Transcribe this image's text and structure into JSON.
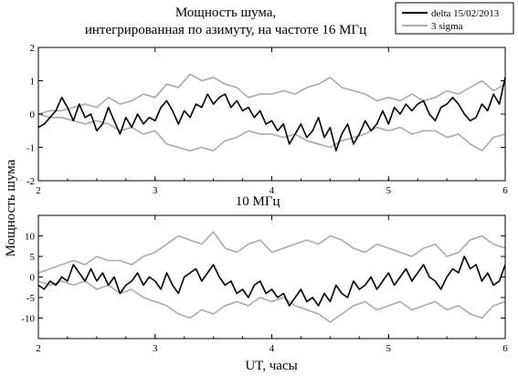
{
  "figure": {
    "title_line1": "Мощность шума,",
    "title_line2": "интегрированная по азимуту, на частоте 16 МГц",
    "ylabel": "Мощность шума",
    "xlabel": "UT, часы",
    "legend": [
      {
        "label": "delta 15/02/2013",
        "color": "#000000"
      },
      {
        "label": "3 sigma",
        "color": "#aaaaaa"
      }
    ]
  },
  "chart_data": [
    {
      "type": "line",
      "title": "",
      "xlabel": "",
      "ylabel": "",
      "xlim": [
        2,
        6
      ],
      "ylim": [
        -2,
        2
      ],
      "xticks": [
        2,
        3,
        4,
        5,
        6
      ],
      "yticks": [
        -2,
        -1,
        0,
        1,
        2
      ],
      "grid": false,
      "series": [
        {
          "name": "delta 15/02/2013",
          "color": "#000000",
          "x": [
            2.0,
            2.05,
            2.1,
            2.15,
            2.2,
            2.25,
            2.3,
            2.35,
            2.4,
            2.45,
            2.5,
            2.55,
            2.6,
            2.65,
            2.7,
            2.75,
            2.8,
            2.85,
            2.9,
            2.95,
            3.0,
            3.05,
            3.1,
            3.15,
            3.2,
            3.25,
            3.3,
            3.35,
            3.4,
            3.45,
            3.5,
            3.55,
            3.6,
            3.65,
            3.7,
            3.75,
            3.8,
            3.85,
            3.9,
            3.95,
            4.0,
            4.05,
            4.1,
            4.15,
            4.2,
            4.25,
            4.3,
            4.35,
            4.4,
            4.45,
            4.5,
            4.55,
            4.6,
            4.65,
            4.7,
            4.75,
            4.8,
            4.85,
            4.9,
            4.95,
            5.0,
            5.05,
            5.1,
            5.15,
            5.2,
            5.25,
            5.3,
            5.35,
            5.4,
            5.45,
            5.5,
            5.55,
            5.6,
            5.65,
            5.7,
            5.75,
            5.8,
            5.85,
            5.9,
            5.95,
            6.0
          ],
          "y": [
            -0.4,
            -0.3,
            -0.1,
            0.1,
            0.5,
            0.2,
            -0.2,
            0.3,
            -0.1,
            0.0,
            -0.5,
            -0.3,
            0.2,
            -0.2,
            -0.6,
            -0.1,
            -0.4,
            0.0,
            -0.3,
            -0.1,
            -0.2,
            0.2,
            0.4,
            0.1,
            -0.3,
            0.1,
            -0.1,
            0.3,
            0.2,
            0.6,
            0.3,
            0.5,
            0.6,
            0.2,
            0.4,
            0.1,
            0.2,
            -0.1,
            0.1,
            -0.3,
            -0.2,
            -0.5,
            -0.3,
            -0.9,
            -0.6,
            -0.3,
            -0.7,
            -0.5,
            -0.1,
            -0.7,
            -0.4,
            -1.1,
            -0.6,
            -0.3,
            -0.9,
            -0.6,
            -0.2,
            -0.5,
            -0.3,
            0.1,
            -0.3,
            0.2,
            0.0,
            0.3,
            0.1,
            0.3,
            0.4,
            0.0,
            -0.2,
            0.2,
            0.3,
            0.5,
            0.3,
            0.0,
            -0.2,
            -0.1,
            0.3,
            0.1,
            0.6,
            0.3,
            1.1
          ]
        },
        {
          "name": "3 sigma",
          "color": "#aaaaaa",
          "x": [
            2.0,
            2.1,
            2.2,
            2.3,
            2.4,
            2.5,
            2.6,
            2.7,
            2.8,
            2.9,
            3.0,
            3.1,
            3.2,
            3.3,
            3.4,
            3.5,
            3.6,
            3.7,
            3.8,
            3.9,
            4.0,
            4.1,
            4.2,
            4.3,
            4.4,
            4.5,
            4.6,
            4.7,
            4.8,
            4.9,
            5.0,
            5.1,
            5.2,
            5.3,
            5.4,
            5.5,
            5.6,
            5.7,
            5.8,
            5.9,
            6.0
          ],
          "y": [
            0.0,
            0.1,
            0.1,
            0.2,
            0.3,
            0.2,
            0.5,
            0.3,
            0.4,
            0.6,
            0.5,
            0.9,
            0.8,
            1.2,
            1.0,
            1.1,
            0.9,
            0.8,
            0.5,
            0.6,
            0.6,
            0.7,
            0.6,
            0.8,
            0.9,
            1.1,
            0.8,
            0.7,
            0.6,
            0.4,
            0.5,
            0.4,
            0.6,
            0.4,
            0.5,
            0.7,
            0.6,
            0.8,
            1.0,
            0.7,
            0.9
          ]
        },
        {
          "name": "",
          "color": "#aaaaaa",
          "x": [
            2.0,
            2.1,
            2.2,
            2.3,
            2.4,
            2.5,
            2.6,
            2.7,
            2.8,
            2.9,
            3.0,
            3.1,
            3.2,
            3.3,
            3.4,
            3.5,
            3.6,
            3.7,
            3.8,
            3.9,
            4.0,
            4.1,
            4.2,
            4.3,
            4.4,
            4.5,
            4.6,
            4.7,
            4.8,
            4.9,
            5.0,
            5.1,
            5.2,
            5.3,
            5.4,
            5.5,
            5.6,
            5.7,
            5.8,
            5.9,
            6.0
          ],
          "y": [
            0.0,
            -0.1,
            -0.1,
            -0.2,
            -0.3,
            -0.2,
            -0.3,
            -0.5,
            -0.4,
            -0.6,
            -0.5,
            -0.9,
            -1.0,
            -1.1,
            -1.0,
            -1.1,
            -0.8,
            -0.7,
            -0.5,
            -0.6,
            -0.6,
            -0.7,
            -0.6,
            -0.8,
            -0.9,
            -1.0,
            -0.8,
            -0.7,
            -0.6,
            -0.4,
            -0.5,
            -0.4,
            -0.6,
            -0.5,
            -0.5,
            -0.7,
            -0.6,
            -0.9,
            -1.1,
            -0.7,
            -0.6
          ]
        }
      ]
    },
    {
      "type": "line",
      "title": "10 МГц",
      "xlabel": "",
      "ylabel": "",
      "xlim": [
        2,
        6
      ],
      "ylim": [
        -15,
        15
      ],
      "xticks": [
        2,
        3,
        4,
        5,
        6
      ],
      "yticks": [
        -10,
        -5,
        0,
        5,
        10
      ],
      "grid": false,
      "series": [
        {
          "name": "",
          "color": "#000000",
          "x": [
            2.0,
            2.05,
            2.1,
            2.15,
            2.2,
            2.25,
            2.3,
            2.35,
            2.4,
            2.45,
            2.5,
            2.55,
            2.6,
            2.65,
            2.7,
            2.75,
            2.8,
            2.85,
            2.9,
            2.95,
            3.0,
            3.05,
            3.1,
            3.15,
            3.2,
            3.25,
            3.3,
            3.35,
            3.4,
            3.45,
            3.5,
            3.55,
            3.6,
            3.65,
            3.7,
            3.75,
            3.8,
            3.85,
            3.9,
            3.95,
            4.0,
            4.05,
            4.1,
            4.15,
            4.2,
            4.25,
            4.3,
            4.35,
            4.4,
            4.45,
            4.5,
            4.55,
            4.6,
            4.65,
            4.7,
            4.75,
            4.8,
            4.85,
            4.9,
            4.95,
            5.0,
            5.05,
            5.1,
            5.15,
            5.2,
            5.25,
            5.3,
            5.35,
            5.4,
            5.45,
            5.5,
            5.55,
            5.6,
            5.65,
            5.7,
            5.75,
            5.8,
            5.85,
            5.9,
            5.95,
            6.0
          ],
          "y": [
            -2,
            -3,
            -1,
            -2,
            0,
            -1,
            3,
            1,
            -1,
            2,
            -1,
            1,
            -2,
            0,
            -4,
            -2,
            -1,
            1,
            -2,
            0,
            -1,
            -3,
            1,
            -2,
            -4,
            0,
            1,
            2,
            -1,
            1,
            3,
            0,
            -2,
            -1,
            -4,
            -3,
            -5,
            -2,
            -1,
            -4,
            -3,
            -5,
            -4,
            -7,
            -5,
            -3,
            -6,
            -5,
            -7,
            -4,
            -6,
            -2,
            -4,
            -5,
            -1,
            -3,
            -2,
            0,
            -3,
            -1,
            1,
            -2,
            0,
            2,
            -1,
            1,
            3,
            0,
            -1,
            -3,
            0,
            2,
            1,
            5,
            2,
            3,
            -1,
            1,
            -2,
            -1,
            3
          ]
        },
        {
          "name": "",
          "color": "#aaaaaa",
          "x": [
            2.0,
            2.1,
            2.2,
            2.3,
            2.4,
            2.5,
            2.6,
            2.7,
            2.8,
            2.9,
            3.0,
            3.1,
            3.2,
            3.3,
            3.4,
            3.5,
            3.6,
            3.7,
            3.8,
            3.9,
            4.0,
            4.1,
            4.2,
            4.3,
            4.4,
            4.5,
            4.6,
            4.7,
            4.8,
            4.9,
            5.0,
            5.1,
            5.2,
            5.3,
            5.4,
            5.5,
            5.6,
            5.7,
            5.8,
            5.9,
            6.0
          ],
          "y": [
            1,
            2,
            3,
            4,
            3,
            5,
            4,
            4,
            3,
            5,
            6,
            8,
            10,
            9,
            8,
            11,
            7,
            6,
            8,
            9,
            6,
            7,
            8,
            9,
            8,
            10,
            9,
            7,
            6,
            8,
            7,
            6,
            5,
            7,
            8,
            5,
            6,
            9,
            10,
            8,
            7
          ]
        },
        {
          "name": "",
          "color": "#aaaaaa",
          "x": [
            2.0,
            2.1,
            2.2,
            2.3,
            2.4,
            2.5,
            2.6,
            2.7,
            2.8,
            2.9,
            3.0,
            3.1,
            3.2,
            3.3,
            3.4,
            3.5,
            3.6,
            3.7,
            3.8,
            3.9,
            4.0,
            4.1,
            4.2,
            4.3,
            4.4,
            4.5,
            4.6,
            4.7,
            4.8,
            4.9,
            5.0,
            5.1,
            5.2,
            5.3,
            5.4,
            5.5,
            5.6,
            5.7,
            5.8,
            5.9,
            6.0
          ],
          "y": [
            -1,
            -2,
            -1,
            -2,
            -1,
            -3,
            -2,
            -4,
            -3,
            -5,
            -6,
            -7,
            -9,
            -10,
            -8,
            -9,
            -7,
            -6,
            -7,
            -5,
            -6,
            -5,
            -7,
            -8,
            -9,
            -11,
            -9,
            -7,
            -6,
            -8,
            -7,
            -6,
            -8,
            -7,
            -6,
            -8,
            -7,
            -9,
            -10,
            -7,
            -6
          ]
        }
      ]
    }
  ]
}
